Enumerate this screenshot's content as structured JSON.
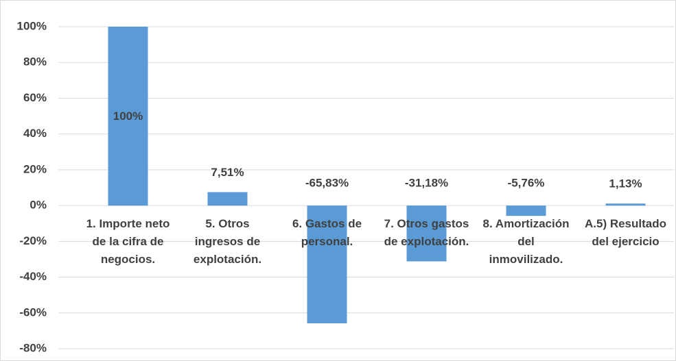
{
  "chart_data": {
    "type": "bar",
    "categories": [
      "1. Importe neto de la cifra de negocios.",
      "5. Otros ingresos de explotación.",
      "6. Gastos de personal.",
      "7. Otros gastos de explotación.",
      "8. Amortización del inmovilizado.",
      "A.5) Resultado del ejercicio"
    ],
    "values": [
      100,
      7.51,
      -65.83,
      -31.18,
      -5.76,
      1.13
    ],
    "value_labels": [
      "100%",
      "7,51%",
      "-65,83%",
      "-31,18%",
      "-5,76%",
      "1,13%"
    ],
    "color": "#5b9bd5",
    "ylim": [
      -80,
      100
    ],
    "yticks": [
      {
        "value": -80,
        "label": "-80%"
      },
      {
        "value": -60,
        "label": "-60%"
      },
      {
        "value": -40,
        "label": "-40%"
      },
      {
        "value": -20,
        "label": "-20%"
      },
      {
        "value": 0,
        "label": "0%"
      },
      {
        "value": 20,
        "label": "20%"
      },
      {
        "value": 40,
        "label": "40%"
      },
      {
        "value": 60,
        "label": "60%"
      },
      {
        "value": 80,
        "label": "80%"
      },
      {
        "value": 100,
        "label": "100%"
      }
    ],
    "grid": true
  }
}
